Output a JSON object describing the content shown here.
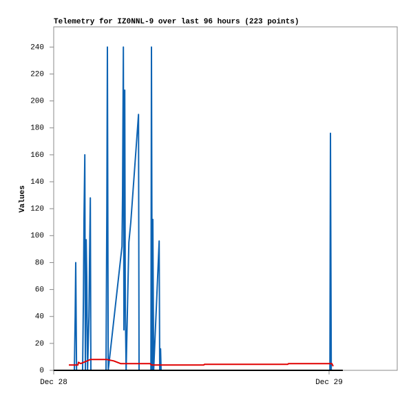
{
  "chart_data": {
    "type": "line",
    "title": "Telemetry for IZ0NNL-9 over last 96 hours (223 points)",
    "y_label": "Values",
    "xlim": [
      0,
      1.2475
    ],
    "xticks": [
      {
        "value": 0,
        "label": "Dec 28"
      },
      {
        "value": 1,
        "label": "Dec 29"
      }
    ],
    "ylim": [
      0,
      255
    ],
    "yticks": [
      0,
      20,
      40,
      60,
      80,
      100,
      120,
      140,
      160,
      180,
      200,
      220,
      240
    ],
    "grid": false,
    "series": [
      {
        "color": "#0d63b3",
        "x": [
          0.075,
          0.078,
          0.08,
          0.083,
          0.105,
          0.108,
          0.11,
          0.113,
          0.115,
          0.118,
          0.12,
          0.123,
          0.128,
          0.13,
          0.133,
          0.135,
          0.19,
          0.193,
          0.195,
          0.198,
          0.248,
          0.25,
          0.253,
          0.255,
          0.258,
          0.26,
          0.263,
          0.273,
          0.28,
          0.308,
          0.31,
          0.353,
          0.355,
          0.358,
          0.36,
          0.363,
          0.383,
          0.385,
          0.388,
          0.39,
          1.003,
          1.005,
          1.008
        ],
        "values": [
          0,
          40,
          80,
          0,
          0,
          55,
          112,
          160,
          0,
          97,
          70,
          0,
          40,
          80,
          128,
          0,
          0,
          120,
          240,
          0,
          92,
          130,
          240,
          30,
          208,
          48,
          0,
          95,
          110,
          190,
          0,
          0,
          240,
          0,
          112,
          0,
          96,
          0,
          16,
          0,
          0,
          176,
          0
        ]
      },
      {
        "color": "#e00000",
        "x": [
          0.055,
          0.088,
          0.09,
          0.098,
          0.133,
          0.193,
          0.218,
          0.243,
          0.35,
          0.355,
          0.545,
          0.548,
          0.85,
          0.853,
          1.01,
          1.015
        ],
        "values": [
          4,
          4,
          6,
          5,
          8,
          8,
          7,
          5,
          5,
          4,
          4,
          4.5,
          4.5,
          5,
          5,
          3
        ]
      }
    ]
  }
}
